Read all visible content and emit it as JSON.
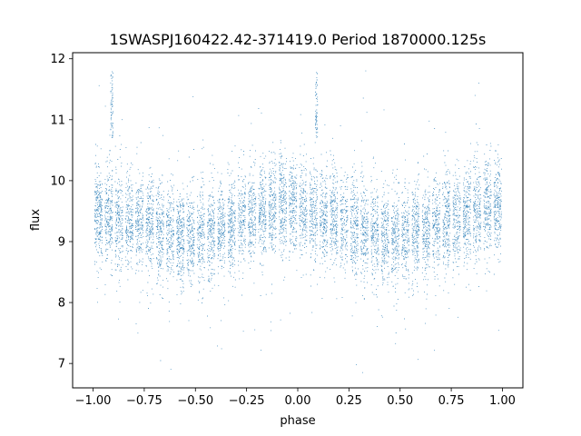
{
  "chart_data": {
    "type": "scatter",
    "title": "1SWASPJ160422.42-371419.0 Period 1870000.125s",
    "xlabel": "phase",
    "ylabel": "flux",
    "xlim": [
      -1.1,
      1.1
    ],
    "ylim": [
      6.6,
      12.1
    ],
    "xticks": [
      -1.0,
      -0.75,
      -0.5,
      -0.25,
      0.0,
      0.25,
      0.5,
      0.75,
      1.0
    ],
    "xtick_labels": [
      "−1.00",
      "−0.75",
      "−0.50",
      "−0.25",
      "0.00",
      "0.25",
      "0.50",
      "0.75",
      "1.00"
    ],
    "yticks": [
      7,
      8,
      9,
      10,
      11,
      12
    ],
    "ytick_labels": [
      "7",
      "8",
      "9",
      "10",
      "11",
      "12"
    ],
    "grid": false,
    "color": "#1f77b4",
    "series": [
      {
        "profile_phase": [
          -1.0,
          -0.9,
          -0.75,
          -0.55,
          -0.45,
          -0.25,
          -0.1,
          0.0,
          0.1,
          0.25,
          0.45,
          0.55,
          0.75,
          0.9,
          1.0
        ],
        "profile_flux": [
          9.5,
          9.4,
          9.3,
          9.05,
          9.1,
          9.4,
          9.6,
          9.55,
          9.4,
          9.3,
          9.05,
          9.1,
          9.35,
          9.55,
          9.6
        ],
        "spread_sd": 0.38,
        "flare_phases": [
          -0.91,
          0.09
        ],
        "flare_flux_range": [
          10.7,
          11.8
        ],
        "flux_min": 6.85,
        "flux_max": 11.8
      }
    ]
  }
}
